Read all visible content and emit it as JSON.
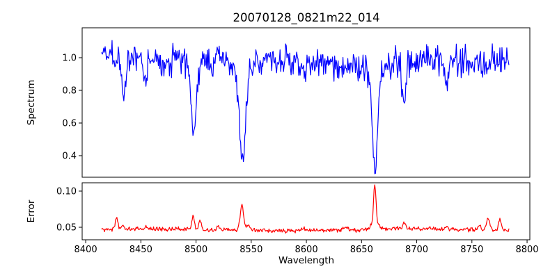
{
  "figure": {
    "title": "20070128_0821m22_014",
    "xlabel": "Wavelength",
    "background_color": "#ffffff",
    "spine_color": "#000000",
    "grid": false,
    "legend": false
  },
  "chart_data": [
    {
      "type": "line",
      "series_name": "spectrum",
      "ylabel": "Spectrum",
      "color": "#0000ff",
      "xlim": [
        8396.8,
        8802.5
      ],
      "ylim": [
        0.268,
        1.183
      ],
      "x_data_range": [
        8414.5,
        8783.5
      ],
      "n_points": 590,
      "y_ticks": [
        0.4,
        0.6,
        0.8,
        1.0
      ],
      "y_tick_labels": [
        "0.4",
        "0.6",
        "0.8",
        "1.0"
      ],
      "continuum_level": 0.98,
      "noise_sigma": 0.045,
      "noise_seed": 20070128,
      "absorption_lines": [
        {
          "center": 8434.5,
          "depth": 0.22,
          "width": 1.6
        },
        {
          "center": 8453.7,
          "depth": 0.13,
          "width": 1.4
        },
        {
          "center": 8468.0,
          "depth": 0.07,
          "width": 1.2
        },
        {
          "center": 8498.0,
          "depth": 0.36,
          "width": 2.0
        },
        {
          "center": 8498.0,
          "depth": 0.1,
          "width": 5.0
        },
        {
          "center": 8514.0,
          "depth": 0.1,
          "width": 1.4
        },
        {
          "center": 8542.1,
          "depth": 0.5,
          "width": 2.6
        },
        {
          "center": 8542.1,
          "depth": 0.14,
          "width": 6.5
        },
        {
          "center": 8598.0,
          "depth": 0.08,
          "width": 1.2
        },
        {
          "center": 8662.1,
          "depth": 0.56,
          "width": 2.2
        },
        {
          "center": 8662.1,
          "depth": 0.13,
          "width": 5.5
        },
        {
          "center": 8688.6,
          "depth": 0.28,
          "width": 1.8
        },
        {
          "center": 8727.0,
          "depth": 0.12,
          "width": 1.4
        },
        {
          "center": 8751.0,
          "depth": 0.07,
          "width": 1.2
        }
      ]
    },
    {
      "type": "line",
      "series_name": "error",
      "ylabel": "Error",
      "color": "#ff0000",
      "xlim": [
        8396.8,
        8802.5
      ],
      "ylim": [
        0.0327,
        0.1115
      ],
      "x_data_range": [
        8414.5,
        8783.5
      ],
      "n_points": 590,
      "x_ticks": [
        8400,
        8450,
        8500,
        8550,
        8600,
        8650,
        8700,
        8750,
        8800
      ],
      "x_tick_labels": [
        "8400",
        "8450",
        "8500",
        "8550",
        "8600",
        "8650",
        "8700",
        "8750",
        "8800"
      ],
      "y_ticks": [
        0.05,
        0.1
      ],
      "y_tick_labels": [
        "0.05",
        "0.10"
      ],
      "baseline": 0.0465,
      "noise_sigma": 0.0015,
      "noise_seed": 20070129,
      "error_peaks": [
        {
          "center": 8428.0,
          "height": 0.017,
          "width": 1.1
        },
        {
          "center": 8433.5,
          "height": 0.005,
          "width": 1.3
        },
        {
          "center": 8455.0,
          "height": 0.003,
          "width": 1.2
        },
        {
          "center": 8497.3,
          "height": 0.019,
          "width": 1.2
        },
        {
          "center": 8503.5,
          "height": 0.016,
          "width": 1.0
        },
        {
          "center": 8520.0,
          "height": 0.004,
          "width": 1.3
        },
        {
          "center": 8541.5,
          "height": 0.034,
          "width": 1.6
        },
        {
          "center": 8547.0,
          "height": 0.007,
          "width": 1.8
        },
        {
          "center": 8598.0,
          "height": 0.003,
          "width": 1.2
        },
        {
          "center": 8636.0,
          "height": 0.004,
          "width": 1.2
        },
        {
          "center": 8662.0,
          "height": 0.05,
          "width": 1.0
        },
        {
          "center": 8662.0,
          "height": 0.012,
          "width": 3.0
        },
        {
          "center": 8688.5,
          "height": 0.009,
          "width": 1.3
        },
        {
          "center": 8727.0,
          "height": 0.004,
          "width": 1.3
        },
        {
          "center": 8757.0,
          "height": 0.006,
          "width": 1.5
        },
        {
          "center": 8764.5,
          "height": 0.014,
          "width": 1.5
        },
        {
          "center": 8775.5,
          "height": 0.016,
          "width": 1.2
        }
      ]
    }
  ]
}
